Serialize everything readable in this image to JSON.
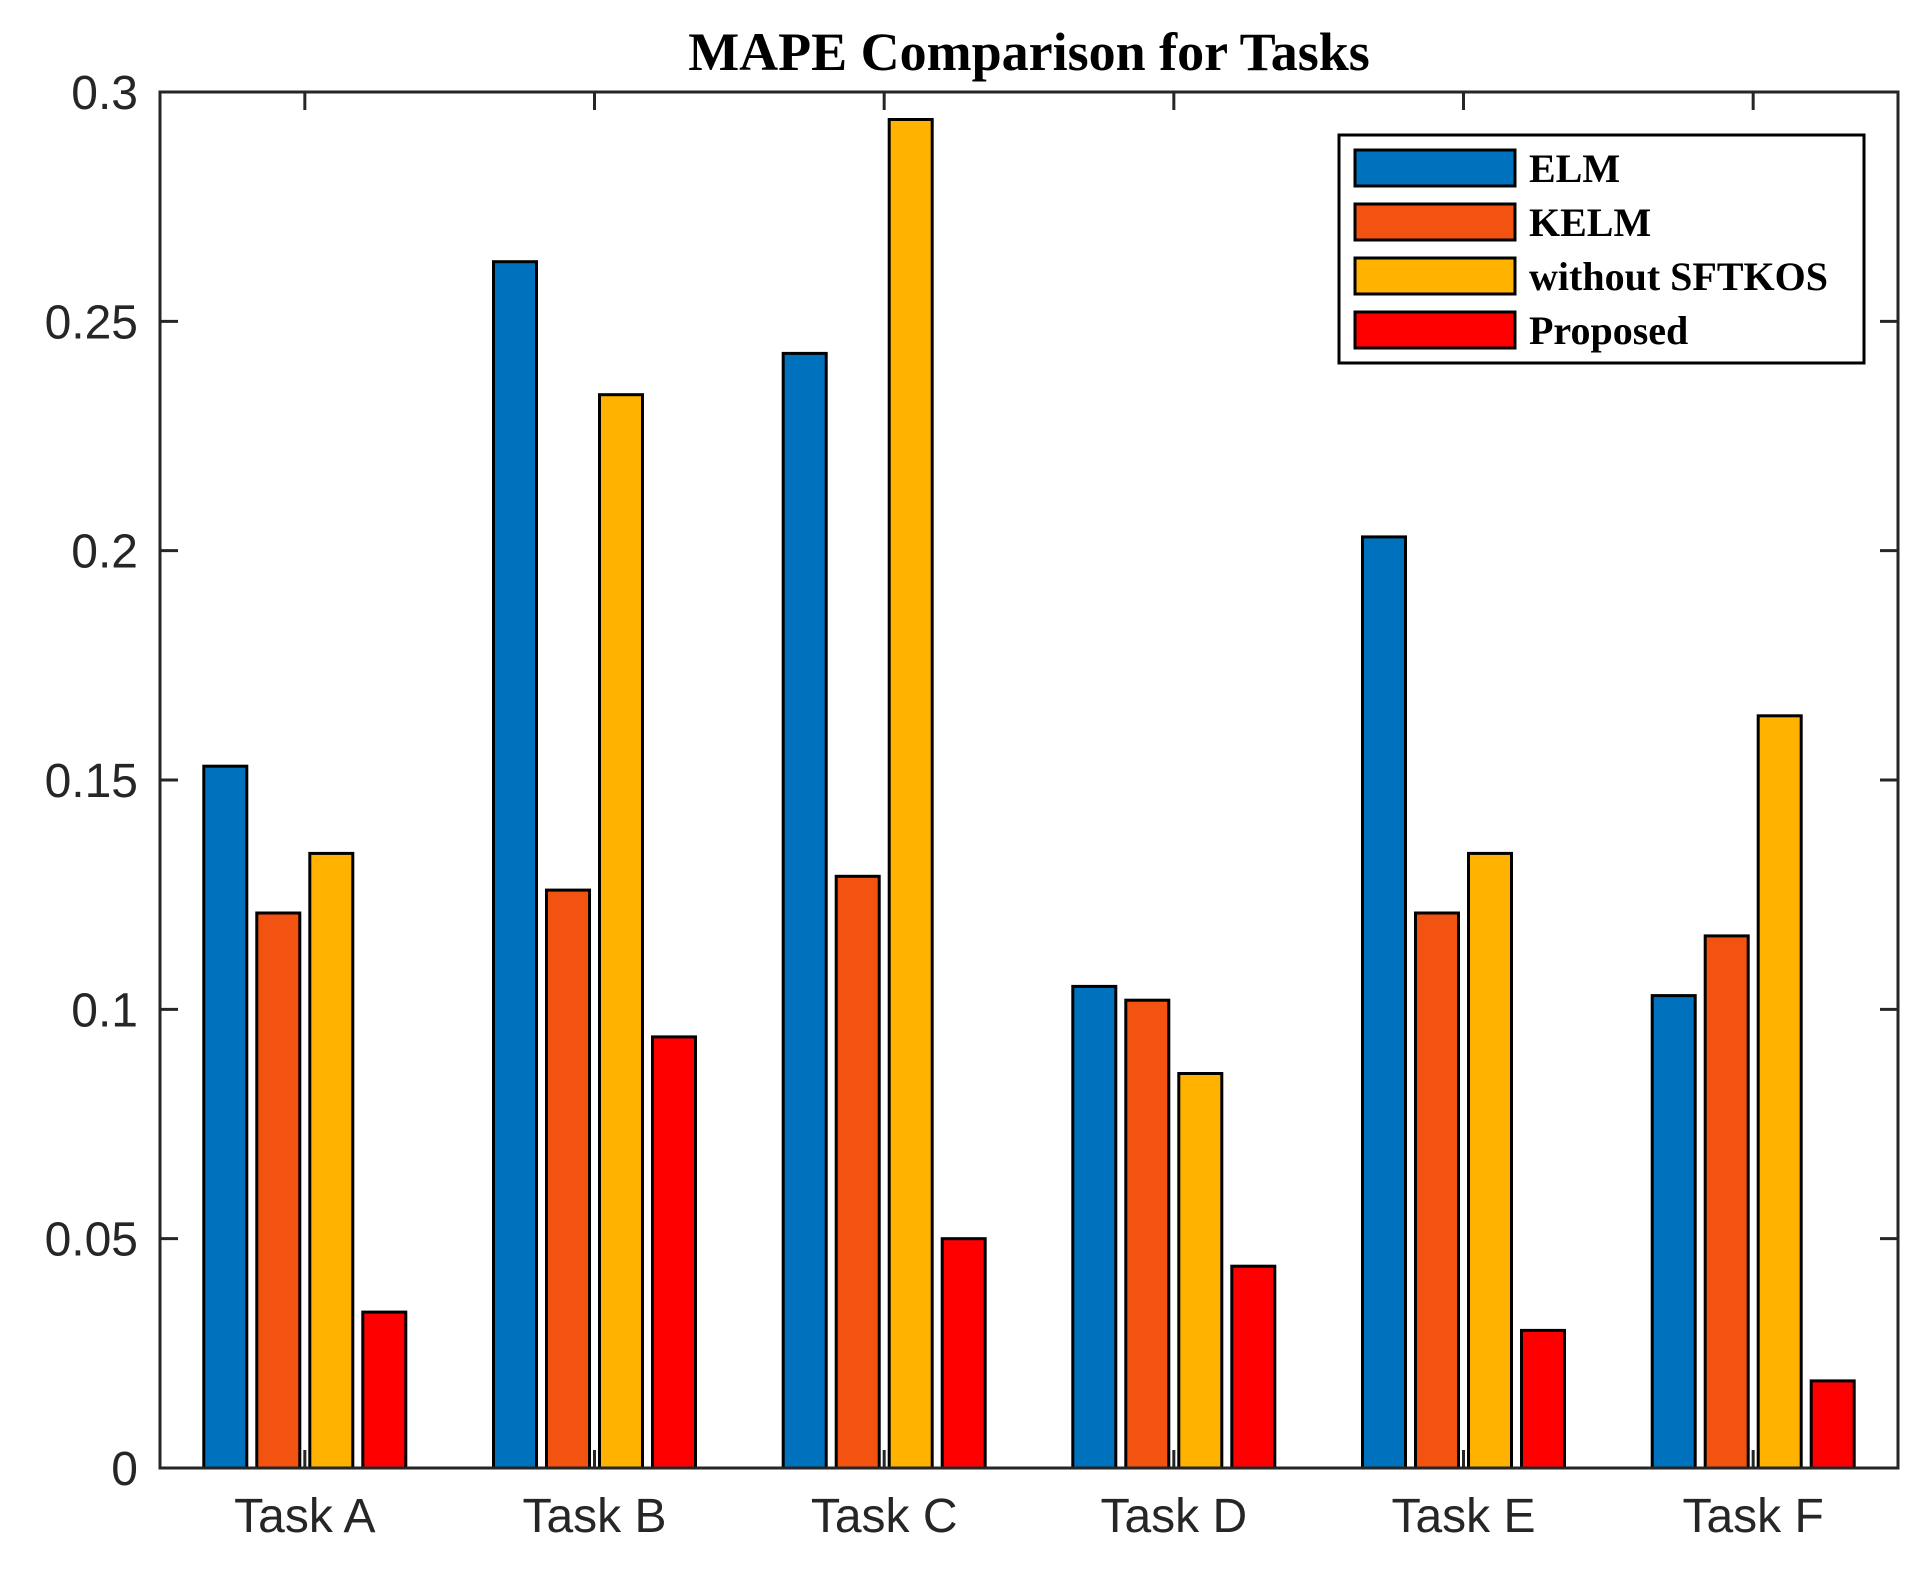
{
  "chart_data": {
    "type": "bar",
    "title": "MAPE Comparison for Tasks",
    "xlabel": "",
    "ylabel": "",
    "categories": [
      "Task A",
      "Task B",
      "Task C",
      "Task D",
      "Task E",
      "Task F"
    ],
    "series": [
      {
        "name": "ELM",
        "color": "#0072BD",
        "values": [
          0.153,
          0.263,
          0.243,
          0.105,
          0.203,
          0.103
        ]
      },
      {
        "name": "KELM",
        "color": "#F35310",
        "values": [
          0.121,
          0.126,
          0.129,
          0.102,
          0.121,
          0.116
        ]
      },
      {
        "name": "without SFTKOS",
        "color": "#FFB200",
        "values": [
          0.134,
          0.234,
          0.294,
          0.086,
          0.134,
          0.164
        ]
      },
      {
        "name": "Proposed",
        "color": "#FF0000",
        "values": [
          0.034,
          0.094,
          0.05,
          0.044,
          0.03,
          0.019
        ]
      }
    ],
    "ylim": [
      0,
      0.3
    ],
    "yticks": [
      0,
      0.05,
      0.1,
      0.15,
      0.2,
      0.25,
      0.3
    ],
    "ytick_labels": [
      "0",
      "0.05",
      "0.1",
      "0.15",
      "0.2",
      "0.25",
      "0.3"
    ],
    "grid": false,
    "legend_position": "top-right"
  }
}
